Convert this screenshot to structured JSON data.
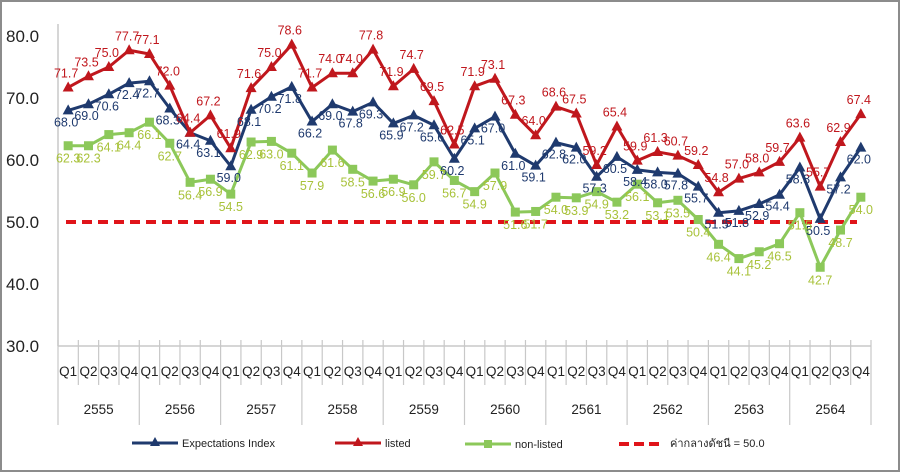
{
  "chart_data": {
    "type": "line",
    "title": "",
    "xlabel": "",
    "ylabel": "",
    "ylim": [
      30,
      80
    ],
    "yticks": [
      "30.0",
      "40.0",
      "50.0",
      "60.0",
      "70.0",
      "80.0"
    ],
    "ytick_values": [
      30,
      40,
      50,
      60,
      70,
      80
    ],
    "quarters": [
      "Q1",
      "Q2",
      "Q3",
      "Q4"
    ],
    "years": [
      "2555",
      "2556",
      "2557",
      "2558",
      "2559",
      "2560",
      "2561",
      "2562",
      "2563",
      "2564"
    ],
    "grid": false,
    "legend_position": "bottom",
    "series": [
      {
        "name": "Expectations Index",
        "color": "#1f3a6e",
        "marker": "triangle",
        "values": [
          68.0,
          69.0,
          70.6,
          72.4,
          72.7,
          68.3,
          64.4,
          63.1,
          59.0,
          68.1,
          70.2,
          71.8,
          66.2,
          69.0,
          67.8,
          69.3,
          65.9,
          67.2,
          65.6,
          60.2,
          65.1,
          67.0,
          61.0,
          59.1,
          62.8,
          62.0,
          57.3,
          60.5,
          58.4,
          58.0,
          57.8,
          55.7,
          51.5,
          51.8,
          52.9,
          54.4,
          58.8,
          50.5,
          57.2,
          62.0
        ],
        "labels": [
          "68.0",
          "69.0",
          "70.6",
          "72.4",
          "72.7",
          "68.3",
          "64.4",
          "63.1",
          "59.0",
          "68.1",
          "70.2",
          "71.8",
          "66.2",
          "69.0",
          "67.8",
          "69.3",
          "65.9",
          "67.2",
          "65.6",
          "60.2",
          "65.1",
          "67.0",
          "61.0",
          "59.1",
          "62.8",
          "62.0",
          "57.3",
          "60.5",
          "58.4",
          "58.0",
          "57.8",
          "55.7",
          "51.5",
          "51.8",
          "52.9",
          "54.4",
          "58.8",
          "50.5",
          "57.2",
          "62.0"
        ]
      },
      {
        "name": "listed",
        "color": "#c0171d",
        "marker": "triangle",
        "values": [
          71.7,
          73.5,
          75.0,
          77.7,
          77.1,
          72.0,
          64.4,
          67.2,
          61.9,
          71.6,
          75.0,
          78.6,
          71.7,
          74.0,
          74.0,
          77.8,
          71.9,
          74.7,
          69.5,
          62.5,
          71.9,
          73.1,
          67.3,
          64.0,
          68.6,
          67.5,
          59.2,
          65.4,
          59.9,
          61.3,
          60.7,
          59.2,
          54.8,
          57.0,
          58.0,
          59.7,
          63.6,
          55.7,
          62.9,
          67.4
        ],
        "labels": [
          "71.7",
          "73.5",
          "75.0",
          "77.7",
          "77.1",
          "72.0",
          "64.4",
          "67.2",
          "61.9",
          "71.6",
          "75.0",
          "78.6",
          "71.7",
          "74.0",
          "74.0",
          "77.8",
          "71.9",
          "74.7",
          "69.5",
          "62.5",
          "71.9",
          "73.1",
          "67.3",
          "64.0",
          "68.6",
          "67.5",
          "59.2",
          "65.4",
          "59.9",
          "61.3",
          "60.7",
          "59.2",
          "54.8",
          "57.0",
          "58.0",
          "59.7",
          "63.6",
          "55.7",
          "62.9",
          "67.4"
        ]
      },
      {
        "name": "non-listed",
        "color": "#8cc85a",
        "label_color": "#a8c23a",
        "marker": "square",
        "values": [
          62.3,
          62.3,
          64.1,
          64.4,
          66.1,
          62.7,
          56.4,
          56.9,
          54.5,
          62.9,
          63.0,
          61.1,
          57.9,
          61.6,
          58.5,
          56.6,
          56.9,
          56.0,
          59.7,
          56.7,
          54.9,
          57.9,
          51.6,
          51.7,
          54.0,
          53.9,
          54.9,
          53.2,
          56.1,
          53.1,
          53.5,
          50.4,
          46.4,
          44.1,
          45.2,
          46.5,
          51.5,
          42.7,
          48.7,
          54.0
        ],
        "labels": [
          "62.3",
          "62.3",
          "64.1",
          "64.4",
          "66.1",
          "62.7",
          "56.4",
          "56.9",
          "54.5",
          "62.9",
          "63.0",
          "61.1",
          "57.9",
          "61.6",
          "58.5",
          "56.6",
          "56.9",
          "56.0",
          "59.7",
          "56.7",
          "54.9",
          "57.9",
          "51.6",
          "51.7",
          "54.0",
          "53.9",
          "54.9",
          "53.2",
          "56.1",
          "53.1",
          "53.5",
          "50.4",
          "46.4",
          "44.1",
          "45.2",
          "46.5",
          "51.5",
          "42.7",
          "48.7",
          "54.0"
        ]
      }
    ],
    "reference_line": {
      "name": "ค่ากลางดัชนี = 50.0",
      "value": 50.0,
      "color": "#e0141a",
      "style": "dashed"
    }
  }
}
